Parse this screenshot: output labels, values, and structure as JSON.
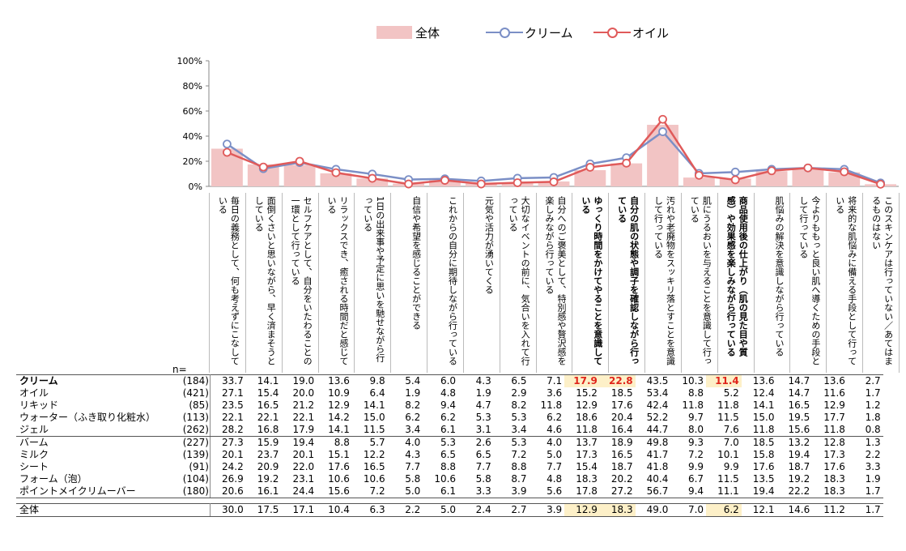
{
  "legend": {
    "total": "全体",
    "cream": "クリーム",
    "oil": "オイル"
  },
  "colors": {
    "total_bar": "#f2c4c4",
    "cream_line": "#7b8fc6",
    "oil_line": "#e05a5a",
    "highlight": "#fdf0c8",
    "red_text": "#e0251b"
  },
  "n_label": "n=",
  "chart_data": {
    "type": "bar",
    "yticks": [
      "0%",
      "20%",
      "40%",
      "60%",
      "80%",
      "100%"
    ],
    "ylim": [
      0,
      100
    ],
    "categories": [
      "毎日の義務として、何も考えずにこなしている",
      "面倒くさいと思いながら、早く済まそうとしている",
      "セルフケアとして、自分をいたわることの一環として行っている",
      "リラックスでき、癒される時間だと感じている",
      "1日の出来事や予定に思いを馳せながら行っている",
      "自信や希望を感じることができる",
      "これからの自分に期待しながら行っている",
      "元気や活力が湧いてくる",
      "大切なイベントの前に、気合いを入れて行っている",
      "自分へのご褒美として、特別感や贅沢感を楽しみながら行っている",
      "ゆっくり時間をかけてやることを意識している",
      "自分の肌の状態や調子を確認しながら行っている",
      "汚れや老廃物をスッキリ落とすことを意識して行っている",
      "肌にうるおいを与えることを意識して行っている",
      "商品使用後の仕上がり（肌の見た目や質感）や効果感を楽しみながら行っている",
      "肌悩みの解決を意識しながら行っている",
      "今よりももっと良い肌へ導くための手段として行っている",
      "将来的な肌悩みに備える手段として行っている",
      "このスキンケアは行っていない／あてはまるものはない"
    ],
    "bold_categories": [
      10,
      11,
      14
    ],
    "series": [
      {
        "name": "全体",
        "type": "bar",
        "values": [
          30.0,
          17.5,
          17.1,
          10.4,
          6.3,
          2.2,
          5.0,
          2.4,
          2.7,
          3.9,
          12.9,
          18.3,
          49.0,
          7.0,
          6.2,
          12.1,
          14.6,
          11.2,
          1.7
        ]
      },
      {
        "name": "クリーム",
        "type": "line",
        "values": [
          33.7,
          14.1,
          19.0,
          13.6,
          9.8,
          5.4,
          6.0,
          4.3,
          6.5,
          7.1,
          17.9,
          22.8,
          43.5,
          10.3,
          11.4,
          13.6,
          14.7,
          13.6,
          2.7
        ]
      },
      {
        "name": "オイル",
        "type": "line",
        "values": [
          27.1,
          15.4,
          20.0,
          10.9,
          6.4,
          1.9,
          4.8,
          1.9,
          2.9,
          3.6,
          15.2,
          18.5,
          53.4,
          8.8,
          5.2,
          12.4,
          14.7,
          11.6,
          1.7
        ]
      }
    ]
  },
  "table": {
    "groups": [
      [
        {
          "name": "クリーム",
          "n": "(184)",
          "bold": true,
          "values": [
            "33.7",
            "14.1",
            "19.0",
            "13.6",
            "9.8",
            "5.4",
            "6.0",
            "4.3",
            "6.5",
            "7.1",
            "17.9",
            "22.8",
            "43.5",
            "10.3",
            "11.4",
            "13.6",
            "14.7",
            "13.6",
            "2.7"
          ],
          "red": [
            10,
            11,
            14
          ]
        },
        {
          "name": "オイル",
          "n": "(421)",
          "values": [
            "27.1",
            "15.4",
            "20.0",
            "10.9",
            "6.4",
            "1.9",
            "4.8",
            "1.9",
            "2.9",
            "3.6",
            "15.2",
            "18.5",
            "53.4",
            "8.8",
            "5.2",
            "12.4",
            "14.7",
            "11.6",
            "1.7"
          ]
        },
        {
          "name": "リキッド",
          "n": "(85)",
          "values": [
            "23.5",
            "16.5",
            "21.2",
            "12.9",
            "14.1",
            "8.2",
            "9.4",
            "4.7",
            "8.2",
            "11.8",
            "12.9",
            "17.6",
            "42.4",
            "11.8",
            "11.8",
            "14.1",
            "16.5",
            "12.9",
            "1.2"
          ]
        },
        {
          "name": "ウォーター（ふき取り化粧水）",
          "n": "(113)",
          "values": [
            "22.1",
            "22.1",
            "22.1",
            "14.2",
            "15.0",
            "6.2",
            "6.2",
            "5.3",
            "5.3",
            "6.2",
            "18.6",
            "20.4",
            "52.2",
            "9.7",
            "11.5",
            "15.0",
            "19.5",
            "17.7",
            "1.8"
          ]
        },
        {
          "name": "ジェル",
          "n": "(262)",
          "values": [
            "28.2",
            "16.8",
            "17.9",
            "14.1",
            "11.5",
            "3.4",
            "6.1",
            "3.1",
            "3.4",
            "4.6",
            "11.8",
            "16.4",
            "44.7",
            "8.0",
            "7.6",
            "11.8",
            "15.6",
            "11.8",
            "0.8"
          ]
        }
      ],
      [
        {
          "name": "バーム",
          "n": "(227)",
          "values": [
            "27.3",
            "15.9",
            "19.4",
            "8.8",
            "5.7",
            "4.0",
            "5.3",
            "2.6",
            "5.3",
            "4.0",
            "13.7",
            "18.9",
            "49.8",
            "9.3",
            "7.0",
            "18.5",
            "13.2",
            "12.8",
            "1.3"
          ]
        },
        {
          "name": "ミルク",
          "n": "(139)",
          "values": [
            "20.1",
            "23.7",
            "20.1",
            "15.1",
            "12.2",
            "4.3",
            "6.5",
            "6.5",
            "7.2",
            "5.0",
            "17.3",
            "16.5",
            "41.7",
            "7.2",
            "10.1",
            "15.8",
            "19.4",
            "17.3",
            "2.2"
          ]
        },
        {
          "name": "シート",
          "n": "(91)",
          "values": [
            "24.2",
            "20.9",
            "22.0",
            "17.6",
            "16.5",
            "7.7",
            "8.8",
            "7.7",
            "8.8",
            "7.7",
            "15.4",
            "18.7",
            "41.8",
            "9.9",
            "9.9",
            "17.6",
            "18.7",
            "17.6",
            "3.3"
          ]
        },
        {
          "name": "フォーム（泡）",
          "n": "(104)",
          "values": [
            "26.9",
            "19.2",
            "23.1",
            "10.6",
            "10.6",
            "5.8",
            "10.6",
            "5.8",
            "8.7",
            "4.8",
            "18.3",
            "20.2",
            "40.4",
            "6.7",
            "11.5",
            "13.5",
            "19.2",
            "18.3",
            "1.9"
          ]
        },
        {
          "name": "ポイントメイクリムーバー",
          "n": "(180)",
          "values": [
            "20.6",
            "16.1",
            "24.4",
            "15.6",
            "7.2",
            "5.0",
            "6.1",
            "3.3",
            "3.9",
            "5.6",
            "17.8",
            "27.2",
            "56.7",
            "9.4",
            "11.1",
            "19.4",
            "22.2",
            "18.3",
            "1.7"
          ]
        }
      ]
    ],
    "total": {
      "name": "全体",
      "n": "",
      "values": [
        "30.0",
        "17.5",
        "17.1",
        "10.4",
        "6.3",
        "2.2",
        "5.0",
        "2.4",
        "2.7",
        "3.9",
        "12.9",
        "18.3",
        "49.0",
        "7.0",
        "6.2",
        "12.1",
        "14.6",
        "11.2",
        "1.7"
      ]
    },
    "highlight_columns": [
      10,
      11,
      14
    ]
  }
}
